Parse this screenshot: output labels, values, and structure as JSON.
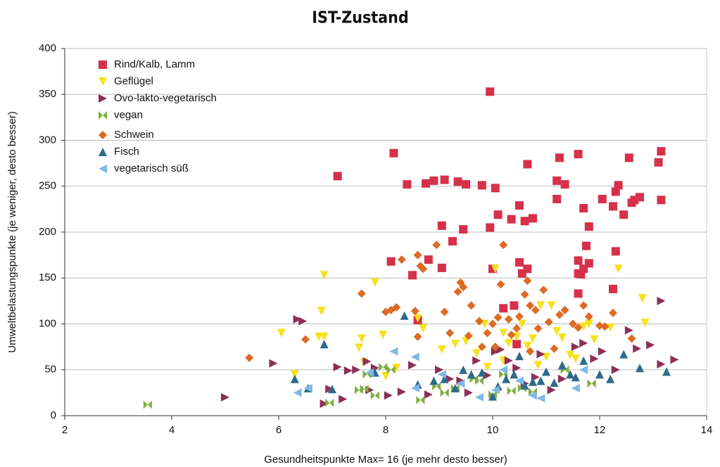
{
  "chart_data": {
    "type": "scatter",
    "title": "IST-Zustand",
    "xlabel": "Gesundheitspunkte Max= 16 (je mehr desto besser)",
    "ylabel": "Umweltbelastungspunkte (je weniger, desto besser)",
    "xlim": [
      2,
      14
    ],
    "xticks": [
      2,
      4,
      6,
      8,
      10,
      12,
      14
    ],
    "ylim": [
      0,
      400
    ],
    "yticks": [
      0,
      50,
      100,
      150,
      200,
      250,
      300,
      350,
      400
    ],
    "grid": true,
    "legend": "upper left",
    "series": [
      {
        "name": "Rind/Kalb, Lamm",
        "color": "#d6304a",
        "marker": "square",
        "x": [
          7.1,
          8.15,
          8.4,
          8.75,
          8.9,
          9.1,
          9.35,
          9.5,
          9.8,
          10.05,
          9.95,
          9.05,
          9.25,
          9.45,
          9.95,
          10.1,
          10.35,
          10.5,
          10.6,
          10.65,
          10.75,
          11.2,
          11.25,
          11.35,
          11.6,
          11.2,
          11.7,
          11.8,
          12.05,
          12.25,
          12.3,
          12.35,
          12.45,
          12.55,
          12.6,
          12.65,
          12.75,
          13.1,
          13.15,
          13.15,
          8.1,
          8.5,
          8.6,
          8.8,
          9.05,
          10.0,
          10.2,
          10.4,
          10.5,
          10.55,
          10.65,
          11.6,
          11.6,
          11.7,
          11.75,
          11.8,
          12.25,
          12.3,
          11.6,
          10.45,
          11.65
        ],
        "values": [
          261,
          286,
          252,
          253,
          256,
          257,
          255,
          252,
          251,
          248,
          353,
          207,
          190,
          203,
          205,
          219,
          214,
          229,
          212,
          274,
          215,
          256,
          281,
          252,
          285,
          236,
          226,
          206,
          236,
          228,
          244,
          251,
          219,
          281,
          232,
          235,
          238,
          276,
          288,
          235,
          168,
          153,
          104,
          170,
          161,
          160,
          117,
          120,
          167,
          155,
          160,
          169,
          155,
          160,
          185,
          166,
          138,
          179,
          133,
          78,
          154
        ]
      },
      {
        "name": "Geflügel",
        "color": "#f7e11b",
        "marker": "down",
        "x": [
          6.05,
          6.3,
          6.75,
          6.85,
          6.8,
          6.85,
          7.5,
          7.55,
          7.6,
          7.8,
          7.95,
          8.0,
          8.2,
          8.6,
          8.7,
          9.05,
          9.3,
          9.5,
          9.7,
          9.9,
          10.05,
          10.2,
          10.3,
          10.45,
          10.55,
          10.75,
          10.9,
          11.0,
          11.1,
          11.2,
          11.3,
          11.45,
          11.55,
          11.7,
          11.8,
          11.9,
          12.2,
          12.35,
          12.8,
          12.85,
          10.2,
          10.85,
          9.85,
          10.65
        ],
        "values": [
          90,
          45,
          86,
          86,
          114,
          153,
          74,
          84,
          58,
          145,
          88,
          43,
          52,
          106,
          95,
          72,
          78,
          81,
          68,
          53,
          160,
          90,
          79,
          86,
          100,
          84,
          120,
          64,
          120,
          92,
          85,
          66,
          62,
          97,
          100,
          83,
          96,
          160,
          128,
          101,
          60,
          55,
          100,
          76
        ]
      },
      {
        "name": "Ovo-lakto-vegetarisch",
        "color": "#8e2f57",
        "marker": "right",
        "x": [
          5.0,
          5.9,
          6.35,
          6.45,
          6.85,
          6.95,
          7.1,
          7.2,
          7.3,
          7.45,
          7.65,
          7.7,
          7.8,
          8.05,
          8.3,
          8.5,
          8.8,
          9.0,
          9.2,
          9.4,
          9.55,
          9.7,
          9.9,
          10.05,
          10.15,
          10.3,
          10.45,
          10.6,
          10.8,
          10.9,
          11.1,
          11.3,
          11.55,
          11.7,
          11.9,
          12.05,
          12.3,
          12.55,
          12.7,
          12.95,
          13.15,
          13.15,
          13.4
        ],
        "values": [
          20,
          57,
          105,
          103,
          13,
          29,
          53,
          18,
          49,
          50,
          59,
          28,
          52,
          22,
          26,
          55,
          23,
          50,
          40,
          38,
          25,
          60,
          44,
          70,
          72,
          60,
          52,
          35,
          42,
          67,
          28,
          40,
          75,
          79,
          62,
          70,
          50,
          93,
          73,
          77,
          125,
          56,
          61
        ]
      },
      {
        "name": "vegan",
        "color": "#7fae3e",
        "marker": "bowtie",
        "x": [
          3.55,
          6.95,
          7.5,
          7.6,
          7.65,
          7.8,
          7.95,
          8.1,
          8.65,
          8.95,
          9.1,
          9.3,
          9.65,
          9.75,
          10.0,
          10.2,
          10.35,
          10.55,
          10.75,
          11.35,
          11.85
        ],
        "values": [
          12,
          14,
          28,
          29,
          45,
          22,
          53,
          50,
          17,
          32,
          25,
          30,
          40,
          38,
          23,
          45,
          27,
          30,
          26,
          50,
          35
        ]
      },
      {
        "name": "Schwein",
        "color": "#de6b25",
        "marker": "diamond",
        "x": [
          5.45,
          6.5,
          7.55,
          8.0,
          8.1,
          8.2,
          8.3,
          8.55,
          8.6,
          8.65,
          8.7,
          8.95,
          8.6,
          9.2,
          9.35,
          9.4,
          9.45,
          9.55,
          9.6,
          9.75,
          9.8,
          9.9,
          10.0,
          10.05,
          10.1,
          10.15,
          10.2,
          10.3,
          10.35,
          10.45,
          10.5,
          10.6,
          10.65,
          10.7,
          10.8,
          10.85,
          10.95,
          11.05,
          11.15,
          11.25,
          11.35,
          11.5,
          11.6,
          11.7,
          11.8,
          12.0,
          12.1,
          12.25,
          12.6,
          9.1,
          10.7
        ],
        "values": [
          63,
          83,
          133,
          113,
          115,
          118,
          170,
          114,
          175,
          163,
          160,
          186,
          86,
          90,
          135,
          145,
          140,
          87,
          120,
          103,
          75,
          90,
          100,
          75,
          107,
          143,
          186,
          105,
          88,
          95,
          108,
          132,
          147,
          120,
          115,
          95,
          137,
          102,
          73,
          110,
          115,
          100,
          96,
          120,
          108,
          98,
          97,
          112,
          84,
          113,
          70
        ]
      },
      {
        "name": "Fisch",
        "color": "#2e6b8b",
        "marker": "up",
        "x": [
          6.3,
          6.55,
          6.85,
          7.0,
          7.8,
          8.35,
          8.6,
          8.9,
          9.1,
          9.3,
          9.45,
          9.6,
          9.8,
          10.0,
          10.1,
          10.25,
          10.4,
          10.6,
          10.75,
          10.9,
          11.0,
          11.15,
          11.3,
          11.45,
          11.55,
          11.7,
          12.0,
          12.2,
          12.45,
          12.75,
          13.25,
          10.5
        ],
        "values": [
          40,
          30,
          78,
          29,
          47,
          109,
          34,
          38,
          40,
          30,
          50,
          45,
          47,
          21,
          32,
          40,
          45,
          33,
          37,
          38,
          48,
          36,
          55,
          45,
          42,
          60,
          45,
          40,
          67,
          52,
          48,
          65
        ]
      },
      {
        "name": "vegetarisch süß",
        "color": "#7fb9e6",
        "marker": "left",
        "x": [
          6.35,
          6.55,
          7.7,
          8.15,
          8.55,
          8.55,
          9.05,
          9.4,
          9.75,
          10.05,
          10.2,
          10.5,
          10.75,
          10.9,
          11.55,
          11.7
        ],
        "values": [
          25,
          30,
          47,
          70,
          30,
          64,
          45,
          35,
          20,
          28,
          50,
          38,
          22,
          19,
          30,
          50
        ]
      }
    ]
  }
}
